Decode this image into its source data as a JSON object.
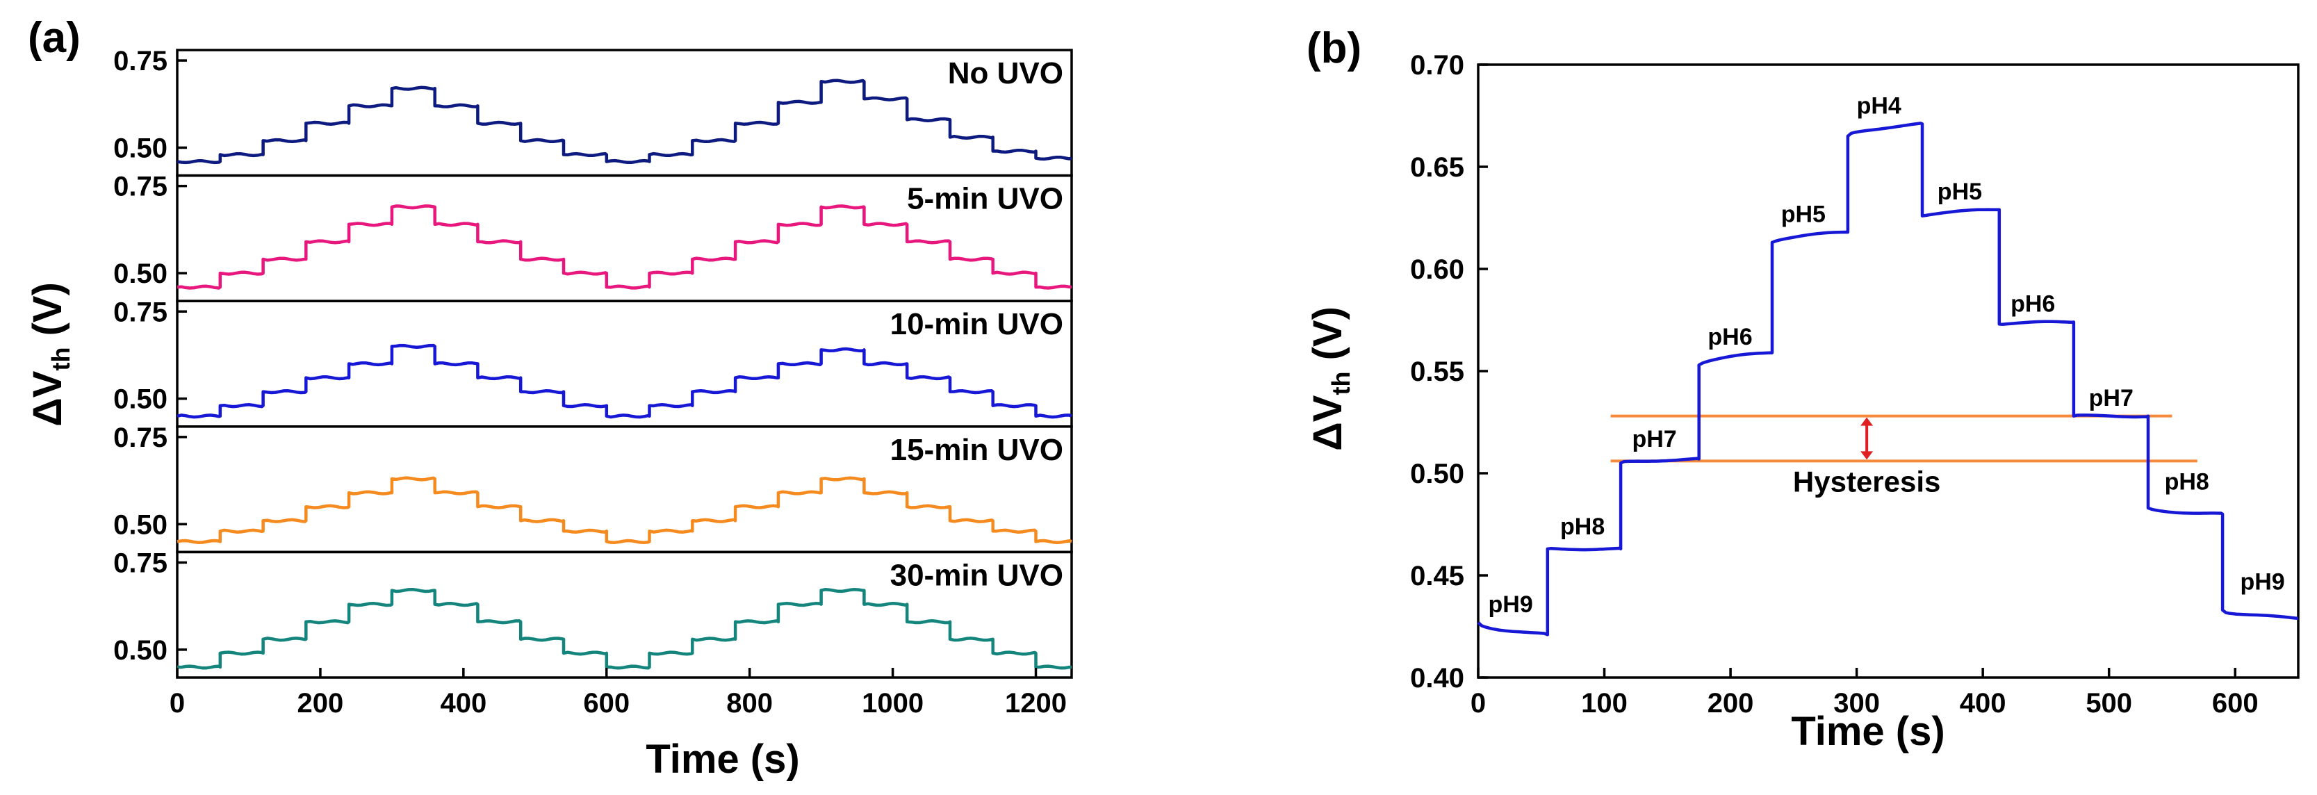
{
  "chart_data": [
    {
      "panel": "(a)",
      "type": "line",
      "xlabel": "Time (s)",
      "ylabel": "ΔV_th (V)",
      "ylabel_main": "ΔV",
      "ylabel_sub": "th",
      "ylabel_unit": " (V)",
      "xlim": [
        0,
        1250
      ],
      "xticks": [
        "0",
        "200",
        "400",
        "600",
        "800",
        "1000",
        "1200"
      ],
      "xtick_values": [
        0,
        200,
        400,
        600,
        800,
        1000,
        1200
      ],
      "subplots": [
        {
          "name": "No UVO",
          "color": "#0d1a80",
          "ylim": [
            0.42,
            0.78
          ],
          "yticks": [
            "0.75",
            "0.50"
          ],
          "times": [
            0,
            60,
            120,
            180,
            240,
            300,
            360,
            420,
            480,
            540,
            600,
            660,
            720,
            780,
            840,
            900,
            960,
            1020,
            1080,
            1140,
            1200,
            1250
          ],
          "values": [
            0.46,
            0.48,
            0.52,
            0.57,
            0.62,
            0.67,
            0.62,
            0.57,
            0.52,
            0.48,
            0.46,
            0.48,
            0.52,
            0.57,
            0.63,
            0.69,
            0.64,
            0.58,
            0.53,
            0.49,
            0.47,
            0.47
          ]
        },
        {
          "name": "5-min UVO",
          "color": "#e8177d",
          "ylim": [
            0.42,
            0.78
          ],
          "yticks": [
            "0.75",
            "0.50"
          ],
          "times": [
            0,
            60,
            120,
            180,
            240,
            300,
            360,
            420,
            480,
            540,
            600,
            660,
            720,
            780,
            840,
            900,
            960,
            1020,
            1080,
            1140,
            1200,
            1250
          ],
          "values": [
            0.46,
            0.5,
            0.54,
            0.59,
            0.64,
            0.69,
            0.64,
            0.59,
            0.54,
            0.5,
            0.46,
            0.5,
            0.54,
            0.59,
            0.64,
            0.69,
            0.64,
            0.59,
            0.54,
            0.5,
            0.46,
            0.46
          ]
        },
        {
          "name": "10-min UVO",
          "color": "#1717d6",
          "ylim": [
            0.42,
            0.78
          ],
          "yticks": [
            "0.75",
            "0.50"
          ],
          "times": [
            0,
            60,
            120,
            180,
            240,
            300,
            360,
            420,
            480,
            540,
            600,
            660,
            720,
            780,
            840,
            900,
            960,
            1020,
            1080,
            1140,
            1200,
            1250
          ],
          "values": [
            0.45,
            0.48,
            0.52,
            0.56,
            0.6,
            0.65,
            0.6,
            0.56,
            0.52,
            0.48,
            0.45,
            0.48,
            0.52,
            0.56,
            0.6,
            0.64,
            0.6,
            0.56,
            0.52,
            0.48,
            0.45,
            0.45
          ]
        },
        {
          "name": "15-min UVO",
          "color": "#f58a1f",
          "ylim": [
            0.42,
            0.78
          ],
          "yticks": [
            "0.75",
            "0.50"
          ],
          "times": [
            0,
            60,
            120,
            180,
            240,
            300,
            360,
            420,
            480,
            540,
            600,
            660,
            720,
            780,
            840,
            900,
            960,
            1020,
            1080,
            1140,
            1200,
            1250
          ],
          "values": [
            0.45,
            0.48,
            0.51,
            0.55,
            0.59,
            0.63,
            0.59,
            0.55,
            0.51,
            0.48,
            0.45,
            0.48,
            0.51,
            0.55,
            0.59,
            0.63,
            0.59,
            0.55,
            0.51,
            0.48,
            0.45,
            0.45
          ]
        },
        {
          "name": "30-min UVO",
          "color": "#14857d",
          "ylim": [
            0.42,
            0.78
          ],
          "yticks": [
            "0.75",
            "0.50"
          ],
          "times": [
            0,
            60,
            120,
            180,
            240,
            300,
            360,
            420,
            480,
            540,
            600,
            660,
            720,
            780,
            840,
            900,
            960,
            1020,
            1080,
            1140,
            1200,
            1250
          ],
          "values": [
            0.45,
            0.49,
            0.53,
            0.58,
            0.63,
            0.67,
            0.63,
            0.58,
            0.53,
            0.49,
            0.45,
            0.49,
            0.53,
            0.58,
            0.63,
            0.67,
            0.63,
            0.58,
            0.53,
            0.49,
            0.45,
            0.45
          ]
        }
      ]
    },
    {
      "panel": "(b)",
      "type": "line",
      "xlabel": "Time (s)",
      "ylabel": "ΔV_th (V)",
      "ylabel_main": "ΔV",
      "ylabel_sub": "th",
      "ylabel_unit": " (V)",
      "xlim": [
        0,
        650
      ],
      "ylim": [
        0.4,
        0.7
      ],
      "xticks": [
        "0",
        "100",
        "200",
        "300",
        "400",
        "500",
        "600"
      ],
      "xtick_values": [
        0,
        100,
        200,
        300,
        400,
        500,
        600
      ],
      "yticks": [
        "0.40",
        "0.45",
        "0.50",
        "0.55",
        "0.60",
        "0.65",
        "0.70"
      ],
      "ytick_values": [
        0.4,
        0.45,
        0.5,
        0.55,
        0.6,
        0.65,
        0.7
      ],
      "color": "#1717d6",
      "steps": [
        {
          "label": "pH9",
          "t0": 0,
          "t1": 55,
          "v0": 0.427,
          "v1": 0.421,
          "lx": 8,
          "ly": 0.432
        },
        {
          "label": "pH8",
          "t0": 55,
          "t1": 113,
          "v0": 0.463,
          "v1": 0.463,
          "lx": 65,
          "ly": 0.47
        },
        {
          "label": "pH7",
          "t0": 113,
          "t1": 175,
          "v0": 0.505,
          "v1": 0.507,
          "lx": 122,
          "ly": 0.513
        },
        {
          "label": "pH6",
          "t0": 175,
          "t1": 233,
          "v0": 0.553,
          "v1": 0.559,
          "lx": 182,
          "ly": 0.563
        },
        {
          "label": "pH5",
          "t0": 233,
          "t1": 293,
          "v0": 0.613,
          "v1": 0.618,
          "lx": 240,
          "ly": 0.623
        },
        {
          "label": "pH4",
          "t0": 293,
          "t1": 352,
          "v0": 0.665,
          "v1": 0.671,
          "lx": 300,
          "ly": 0.676
        },
        {
          "label": "pH5",
          "t0": 352,
          "t1": 413,
          "v0": 0.626,
          "v1": 0.629,
          "lx": 364,
          "ly": 0.634
        },
        {
          "label": "pH6",
          "t0": 413,
          "t1": 472,
          "v0": 0.573,
          "v1": 0.574,
          "lx": 422,
          "ly": 0.579
        },
        {
          "label": "pH7",
          "t0": 472,
          "t1": 531,
          "v0": 0.528,
          "v1": 0.528,
          "lx": 484,
          "ly": 0.533
        },
        {
          "label": "pH8",
          "t0": 531,
          "t1": 590,
          "v0": 0.483,
          "v1": 0.48,
          "lx": 544,
          "ly": 0.492
        },
        {
          "label": "pH9",
          "t0": 590,
          "t1": 650,
          "v0": 0.433,
          "v1": 0.429,
          "lx": 604,
          "ly": 0.443
        }
      ],
      "reference_lines": [
        {
          "name": "upper",
          "y": 0.528,
          "x0": 105,
          "x1": 550,
          "color": "#f58a3c"
        },
        {
          "name": "lower",
          "y": 0.506,
          "x0": 105,
          "x1": 570,
          "color": "#f58a3c"
        }
      ],
      "arrow": {
        "x": 308,
        "y0": 0.506,
        "y1": 0.528,
        "color": "#e02020"
      },
      "annotation": "Hysteresis",
      "annotation_x": 308,
      "annotation_y": 0.491
    }
  ]
}
